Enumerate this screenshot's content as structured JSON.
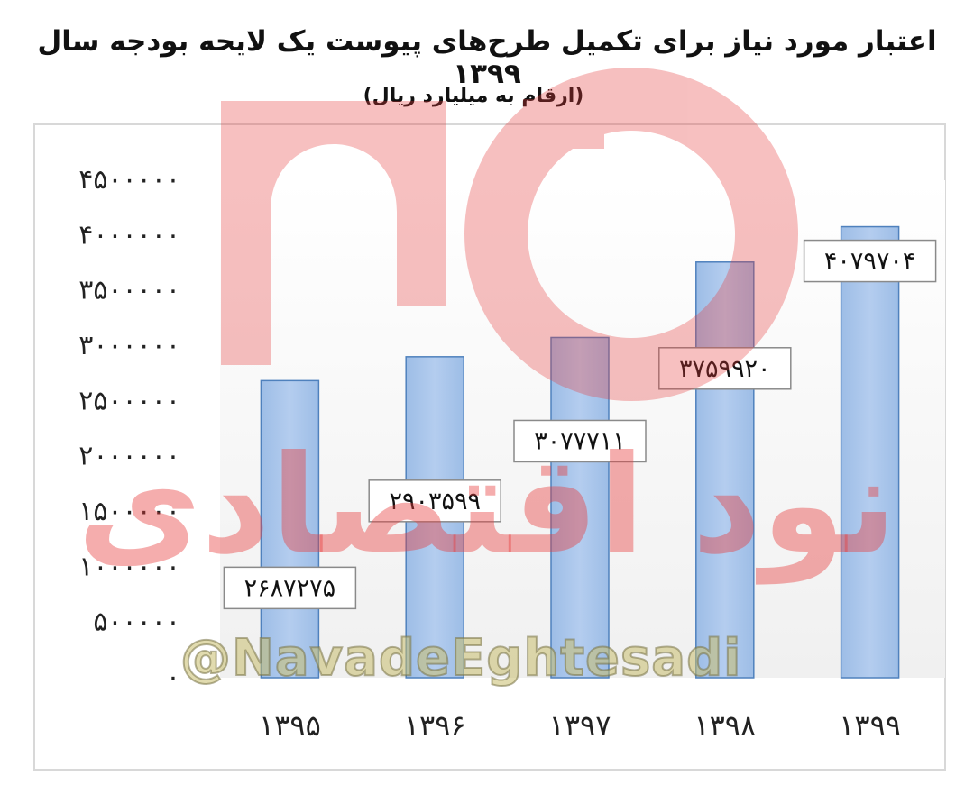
{
  "chart_data": {
    "type": "bar",
    "title": "اعتبار مورد نیاز برای تکمیل طرح‌های پیوست یک لایحه بودجه سال ۱۳۹۹",
    "subtitle": "(ارقام به میلیارد ریال)",
    "categories": [
      "۱۳۹۵",
      "۱۳۹۶",
      "۱۳۹۷",
      "۱۳۹۸",
      "۱۳۹۹"
    ],
    "values": [
      2687275,
      2903599,
      3077711,
      3759920,
      4079704
    ],
    "data_labels": [
      "۲۶۸۷۲۷۵",
      "۲۹۰۳۵۹۹",
      "۳۰۷۷۷۱۱",
      "۳۷۵۹۹۲۰",
      "۴۰۷۹۷۰۴"
    ],
    "ylim": [
      0,
      4500000
    ],
    "y_ticks": [
      0,
      500000,
      1000000,
      1500000,
      2000000,
      2500000,
      3000000,
      3500000,
      4000000,
      4500000
    ],
    "y_tick_labels": [
      "۰",
      "۵۰۰۰۰۰",
      "۱۰۰۰۰۰۰",
      "۱۵۰۰۰۰۰",
      "۲۰۰۰۰۰۰",
      "۲۵۰۰۰۰۰",
      "۳۰۰۰۰۰۰",
      "۳۵۰۰۰۰۰",
      "۴۰۰۰۰۰۰",
      "۴۵۰۰۰۰۰"
    ],
    "xlabel": "",
    "ylabel": "",
    "grid": false,
    "bar_color": "#9dbde6",
    "bar_edge_color": "#4f81bd"
  },
  "watermark": {
    "brand_text": "نود اقتصادی",
    "handle": "@NavadeEghtesadi",
    "color": "#e85a5a"
  }
}
